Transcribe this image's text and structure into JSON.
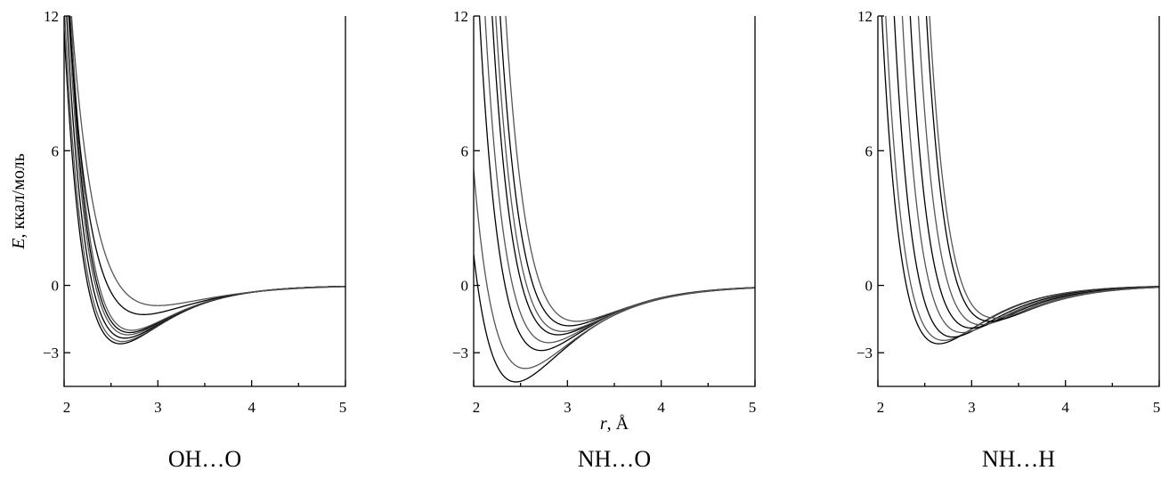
{
  "chart_data": [
    {
      "type": "line",
      "title": "OH…O",
      "xlabel": "",
      "ylabel": "E, ккал/моль",
      "ylabel_italic": "E",
      "ylabel_rest": ", ккал/моль",
      "xlim": [
        2,
        5
      ],
      "ylim": [
        -4.5,
        12
      ],
      "xticks": [
        2,
        3,
        4,
        5
      ],
      "xtick_labels": [
        "2",
        "3",
        "4",
        "5"
      ],
      "yticks": [
        12,
        6,
        0,
        -3
      ],
      "ytick_labels": [
        "12",
        "6",
        "0",
        "−3"
      ],
      "series": [
        {
          "r0": 2.6,
          "De": 2.6,
          "a": 2.0
        },
        {
          "r0": 2.62,
          "De": 2.5,
          "a": 2.0
        },
        {
          "r0": 2.65,
          "De": 2.35,
          "a": 2.0
        },
        {
          "r0": 2.68,
          "De": 2.2,
          "a": 2.0
        },
        {
          "r0": 2.7,
          "De": 2.1,
          "a": 2.0
        },
        {
          "r0": 2.72,
          "De": 2.0,
          "a": 2.0
        },
        {
          "r0": 2.85,
          "De": 1.3,
          "a": 1.8
        },
        {
          "r0": 3.0,
          "De": 0.9,
          "a": 1.7
        }
      ]
    },
    {
      "type": "line",
      "title": "NH…O",
      "xlabel": "r, Å",
      "xlabel_italic": "r",
      "xlabel_rest": ", Å",
      "ylabel": "",
      "xlim": [
        2,
        5
      ],
      "ylim": [
        -4.5,
        12
      ],
      "xticks": [
        2,
        3,
        4,
        5
      ],
      "xtick_labels": [
        "2",
        "3",
        "4",
        "5"
      ],
      "yticks": [
        12,
        6,
        0,
        -3
      ],
      "ytick_labels": [
        "12",
        "6",
        "0",
        "−3"
      ],
      "series": [
        {
          "r0": 2.45,
          "De": 4.3,
          "a": 1.7
        },
        {
          "r0": 2.55,
          "De": 3.7,
          "a": 1.7
        },
        {
          "r0": 2.72,
          "De": 2.9,
          "a": 1.8
        },
        {
          "r0": 2.8,
          "De": 2.55,
          "a": 1.8
        },
        {
          "r0": 2.9,
          "De": 2.2,
          "a": 1.8
        },
        {
          "r0": 2.95,
          "De": 2.05,
          "a": 1.8
        },
        {
          "r0": 3.02,
          "De": 1.8,
          "a": 1.8
        },
        {
          "r0": 3.1,
          "De": 1.6,
          "a": 1.8
        }
      ]
    },
    {
      "type": "line",
      "title": "NH…H",
      "xlabel": "",
      "ylabel": "",
      "xlim": [
        2,
        5
      ],
      "ylim": [
        -4.5,
        12
      ],
      "xticks": [
        2,
        3,
        4,
        5
      ],
      "xtick_labels": [
        "2",
        "3",
        "4",
        "5"
      ],
      "yticks": [
        12,
        6,
        0,
        -3
      ],
      "ytick_labels": [
        "12",
        "6",
        "0",
        "−3"
      ],
      "series": [
        {
          "r0": 2.65,
          "De": 2.6,
          "a": 2.0
        },
        {
          "r0": 2.7,
          "De": 2.45,
          "a": 2.0
        },
        {
          "r0": 2.8,
          "De": 2.3,
          "a": 2.0
        },
        {
          "r0": 2.9,
          "De": 2.1,
          "a": 2.0
        },
        {
          "r0": 3.0,
          "De": 1.9,
          "a": 2.0
        },
        {
          "r0": 3.1,
          "De": 1.75,
          "a": 2.0
        },
        {
          "r0": 3.2,
          "De": 1.6,
          "a": 2.0
        },
        {
          "r0": 3.25,
          "De": 1.45,
          "a": 2.0
        }
      ]
    }
  ],
  "colors": {
    "dark_curve": "#000000",
    "light_curve": "#555555"
  }
}
